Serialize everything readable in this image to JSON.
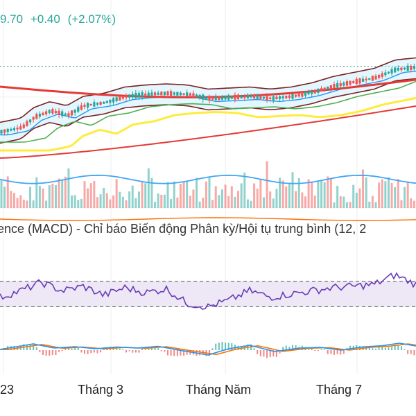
{
  "header": {
    "price": "9.70",
    "change": "+0.40",
    "change_pct": "(+2.07%)",
    "up_color": "#26a69a"
  },
  "macd_title": "ence (MACD) - Chỉ báo Biến động Phân kỳ/Hội tụ trung bình (12, 2",
  "x_labels": [
    "23",
    "Tháng 3",
    "Tháng Năm",
    "Tháng 7"
  ],
  "colors": {
    "up": "#26a69a",
    "down": "#ef5350",
    "ma_short": "#2196f3",
    "ma_mid": "#4caf50",
    "ma_yellow": "#ffeb3b",
    "ma_long": "#e53935",
    "band": "#7b1f1f",
    "volume_ma": "#42a5f5",
    "rsi_line": "#673ab7",
    "rsi_band": "#ede7f6",
    "macd_line": "#2196f3",
    "signal_line": "#ff6d00"
  },
  "chart_data": [
    {
      "type": "candlestick",
      "panel": "price",
      "price_range": [
        0,
        100
      ],
      "price_path": [
        {
          "t": 0,
          "v": 30
        },
        {
          "t": 0.05,
          "v": 34
        },
        {
          "t": 0.08,
          "v": 44
        },
        {
          "t": 0.12,
          "v": 50
        },
        {
          "t": 0.16,
          "v": 46
        },
        {
          "t": 0.2,
          "v": 55
        },
        {
          "t": 0.25,
          "v": 58
        },
        {
          "t": 0.3,
          "v": 64
        },
        {
          "t": 0.35,
          "v": 66
        },
        {
          "t": 0.4,
          "v": 67
        },
        {
          "t": 0.45,
          "v": 66
        },
        {
          "t": 0.5,
          "v": 62
        },
        {
          "t": 0.55,
          "v": 63
        },
        {
          "t": 0.6,
          "v": 64
        },
        {
          "t": 0.65,
          "v": 62
        },
        {
          "t": 0.7,
          "v": 64
        },
        {
          "t": 0.75,
          "v": 68
        },
        {
          "t": 0.8,
          "v": 74
        },
        {
          "t": 0.85,
          "v": 78
        },
        {
          "t": 0.9,
          "v": 82
        },
        {
          "t": 0.95,
          "v": 90
        },
        {
          "t": 1.0,
          "v": 92
        }
      ],
      "resistance_level": 93
    },
    {
      "type": "bar",
      "panel": "volume",
      "volume_ma_level": 0.55
    },
    {
      "type": "line",
      "panel": "rsi",
      "ylim": [
        0,
        100
      ],
      "upper_band": 70,
      "lower_band": 30,
      "rsi_path": [
        {
          "t": 0,
          "v": 45
        },
        {
          "t": 0.05,
          "v": 55
        },
        {
          "t": 0.1,
          "v": 68
        },
        {
          "t": 0.15,
          "v": 55
        },
        {
          "t": 0.2,
          "v": 62
        },
        {
          "t": 0.25,
          "v": 48
        },
        {
          "t": 0.3,
          "v": 60
        },
        {
          "t": 0.35,
          "v": 52
        },
        {
          "t": 0.4,
          "v": 58
        },
        {
          "t": 0.45,
          "v": 35
        },
        {
          "t": 0.5,
          "v": 30
        },
        {
          "t": 0.55,
          "v": 40
        },
        {
          "t": 0.6,
          "v": 55
        },
        {
          "t": 0.65,
          "v": 45
        },
        {
          "t": 0.7,
          "v": 50
        },
        {
          "t": 0.75,
          "v": 55
        },
        {
          "t": 0.8,
          "v": 60
        },
        {
          "t": 0.85,
          "v": 62
        },
        {
          "t": 0.9,
          "v": 65
        },
        {
          "t": 0.95,
          "v": 80
        },
        {
          "t": 1.0,
          "v": 65
        }
      ]
    },
    {
      "type": "line",
      "panel": "macd",
      "macd_path": [
        {
          "t": 0,
          "v": 0.1
        },
        {
          "t": 0.05,
          "v": 0.6
        },
        {
          "t": 0.08,
          "v": 0.9
        },
        {
          "t": 0.13,
          "v": 0.3
        },
        {
          "t": 0.18,
          "v": 0.5
        },
        {
          "t": 0.23,
          "v": 0.2
        },
        {
          "t": 0.28,
          "v": 0.45
        },
        {
          "t": 0.33,
          "v": 0.3
        },
        {
          "t": 0.38,
          "v": 0.55
        },
        {
          "t": 0.43,
          "v": 0.0
        },
        {
          "t": 0.5,
          "v": -0.7
        },
        {
          "t": 0.55,
          "v": 0.2
        },
        {
          "t": 0.6,
          "v": 0.7
        },
        {
          "t": 0.66,
          "v": -0.2
        },
        {
          "t": 0.72,
          "v": 0.3
        },
        {
          "t": 0.77,
          "v": 0.4
        },
        {
          "t": 0.82,
          "v": 0.0
        },
        {
          "t": 0.87,
          "v": 0.45
        },
        {
          "t": 0.92,
          "v": 0.65
        },
        {
          "t": 0.96,
          "v": 1.0
        },
        {
          "t": 1.0,
          "v": 0.6
        }
      ]
    }
  ]
}
